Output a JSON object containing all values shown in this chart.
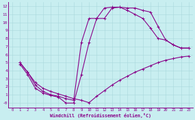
{
  "xlabel": "Windchill (Refroidissement éolien,°C)",
  "xlim": [
    -0.5,
    23.5
  ],
  "ylim": [
    -0.6,
    12.5
  ],
  "xticks": [
    0,
    1,
    2,
    3,
    4,
    5,
    6,
    7,
    8,
    9,
    10,
    11,
    12,
    13,
    14,
    15,
    16,
    17,
    18,
    19,
    20,
    21,
    22,
    23
  ],
  "yticks": [
    0,
    1,
    2,
    3,
    4,
    5,
    6,
    7,
    8,
    9,
    10,
    11,
    12
  ],
  "ytick_labels": [
    "-0",
    "1",
    "2",
    "3",
    "4",
    "5",
    "6",
    "7",
    "8",
    "9",
    "10",
    "11",
    "12"
  ],
  "bg_color": "#c8eef0",
  "grid_color": "#a8d8dc",
  "line_color": "#880088",
  "line_width": 0.8,
  "marker": "+",
  "marker_size": 3,
  "marker_edge_width": 0.7,
  "line1_x": [
    1,
    2,
    3,
    4,
    5,
    6,
    7,
    8,
    9,
    10,
    11,
    12,
    13,
    14,
    15,
    16,
    17,
    18,
    19,
    20,
    21,
    22,
    23
  ],
  "line1_y": [
    5.0,
    3.8,
    2.5,
    1.8,
    1.4,
    1.1,
    0.8,
    0.5,
    0.3,
    0.0,
    0.8,
    1.5,
    2.2,
    2.8,
    3.3,
    3.8,
    4.2,
    4.6,
    5.0,
    5.3,
    5.5,
    5.7,
    5.8
  ],
  "line2_x": [
    1,
    2,
    3,
    4,
    5,
    6,
    7,
    8,
    9,
    10,
    11,
    12,
    13,
    14,
    15,
    16,
    17,
    18,
    19,
    20,
    21,
    22,
    23
  ],
  "line2_y": [
    5.0,
    3.8,
    2.2,
    1.4,
    1.0,
    0.8,
    0.5,
    0.3,
    7.5,
    10.5,
    10.5,
    11.8,
    11.9,
    11.9,
    11.8,
    11.8,
    11.5,
    11.3,
    9.5,
    7.8,
    7.2,
    6.8,
    6.8
  ],
  "line3_x": [
    1,
    2,
    3,
    4,
    5,
    6,
    7,
    8,
    9,
    10,
    11,
    12,
    13,
    14,
    15,
    16,
    17,
    18,
    19,
    20,
    21,
    22,
    23
  ],
  "line3_y": [
    4.8,
    3.5,
    1.8,
    1.2,
    0.9,
    0.7,
    -0.05,
    -0.05,
    3.5,
    7.5,
    10.5,
    10.5,
    11.8,
    11.9,
    11.5,
    11.0,
    10.5,
    9.3,
    8.0,
    7.8,
    7.2,
    6.8,
    6.8
  ]
}
